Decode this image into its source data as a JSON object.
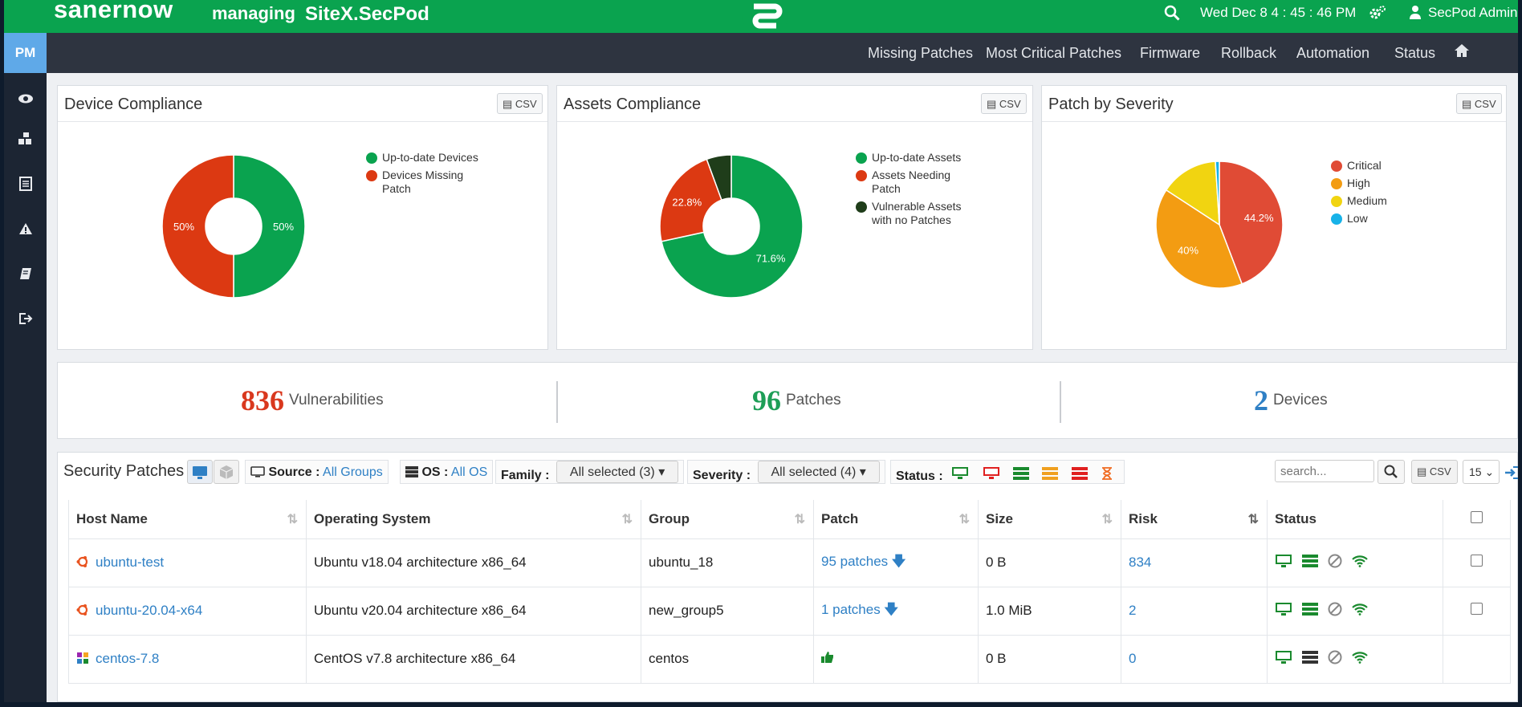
{
  "topbar": {
    "brand": "sanernow",
    "managing_label": "managing",
    "site": "SiteX.SecPod",
    "datetime": "Wed Dec 8  4 : 45 : 46 PM",
    "user": "SecPod Admin"
  },
  "sidebar": {
    "pm_label": "PM",
    "icons": [
      "sitemap-icon",
      "eye-icon",
      "cubes-icon",
      "list-icon",
      "warning-icon",
      "book-icon",
      "sign-out-icon"
    ]
  },
  "subnav": {
    "items": [
      "Missing Patches",
      "Most Critical Patches",
      "Firmware",
      "Rollback",
      "Automation",
      "Status"
    ]
  },
  "panels": {
    "csv_label": "CSV",
    "device": {
      "title": "Device Compliance",
      "legend": [
        "Up-to-date Devices",
        "Devices Missing Patch"
      ],
      "labels": [
        "50%",
        "50%"
      ]
    },
    "assets": {
      "title": "Assets Compliance",
      "legend": [
        "Up-to-date Assets",
        "Assets Needing Patch",
        "Vulnerable Assets with no Patches"
      ],
      "labels": [
        "71.6%",
        "22.8%"
      ]
    },
    "severity": {
      "title": "Patch by Severity",
      "legend": [
        "Critical",
        "High",
        "Medium",
        "Low"
      ],
      "labels": [
        "44.2%",
        "40%"
      ]
    }
  },
  "chart_data": [
    {
      "type": "pie",
      "title": "Device Compliance",
      "categories": [
        "Up-to-date Devices",
        "Devices Missing Patch"
      ],
      "values": [
        50,
        50
      ],
      "colors": [
        "#0aa34f",
        "#dc3912"
      ],
      "donut": true
    },
    {
      "type": "pie",
      "title": "Assets Compliance",
      "categories": [
        "Up-to-date Assets",
        "Assets Needing Patch",
        "Vulnerable Assets with no Patches"
      ],
      "values": [
        71.6,
        22.8,
        5.6
      ],
      "colors": [
        "#0aa34f",
        "#dc3912",
        "#1f3d1a"
      ],
      "donut": true
    },
    {
      "type": "pie",
      "title": "Patch by Severity",
      "categories": [
        "Critical",
        "High",
        "Medium",
        "Low"
      ],
      "values": [
        44.2,
        40,
        14.8,
        1
      ],
      "colors": [
        "#e04b35",
        "#f39c12",
        "#f1d411",
        "#17b2e8"
      ],
      "donut": false
    }
  ],
  "stats": {
    "vulnerabilities_count": "836",
    "vulnerabilities_label": "Vulnerabilities",
    "patches_count": "96",
    "patches_label": "Patches",
    "devices_count": "2",
    "devices_label": "Devices"
  },
  "patches": {
    "title": "Security Patches",
    "source_label": "Source :",
    "source_value": "All Groups",
    "os_label": "OS :",
    "os_value": "All OS",
    "family_label": "Family :",
    "family_value": "All selected (3)",
    "severity_label": "Severity :",
    "severity_value": "All selected (4)",
    "status_label": "Status :",
    "search_placeholder": "search...",
    "csv_label": "CSV",
    "page_size": "15",
    "columns": [
      "Host Name",
      "Operating System",
      "Group",
      "Patch",
      "Size",
      "Risk",
      "Status"
    ],
    "rows": [
      {
        "host": "ubuntu-test",
        "os": "Ubuntu v18.04 architecture x86_64",
        "group": "ubuntu_18",
        "patch": "95 patches",
        "size": "0 B",
        "risk": "834"
      },
      {
        "host": "ubuntu-20.04-x64",
        "os": "Ubuntu v20.04 architecture x86_64",
        "group": "new_group5",
        "patch": "1 patches",
        "size": "1.0 MiB",
        "risk": "2"
      },
      {
        "host": "centos-7.8",
        "os": "CentOS v7.8 architecture x86_64",
        "group": "centos",
        "patch": "",
        "size": "0 B",
        "risk": "0"
      }
    ]
  },
  "colors": {
    "brand_green": "#0aa34f",
    "sidebar_dark": "#1c2533",
    "subnav_dark": "#2e3440",
    "link_blue": "#2f80c5",
    "vuln_red": "#d9381e",
    "patch_green": "#1e9e57",
    "device_blue": "#2f80c5"
  }
}
